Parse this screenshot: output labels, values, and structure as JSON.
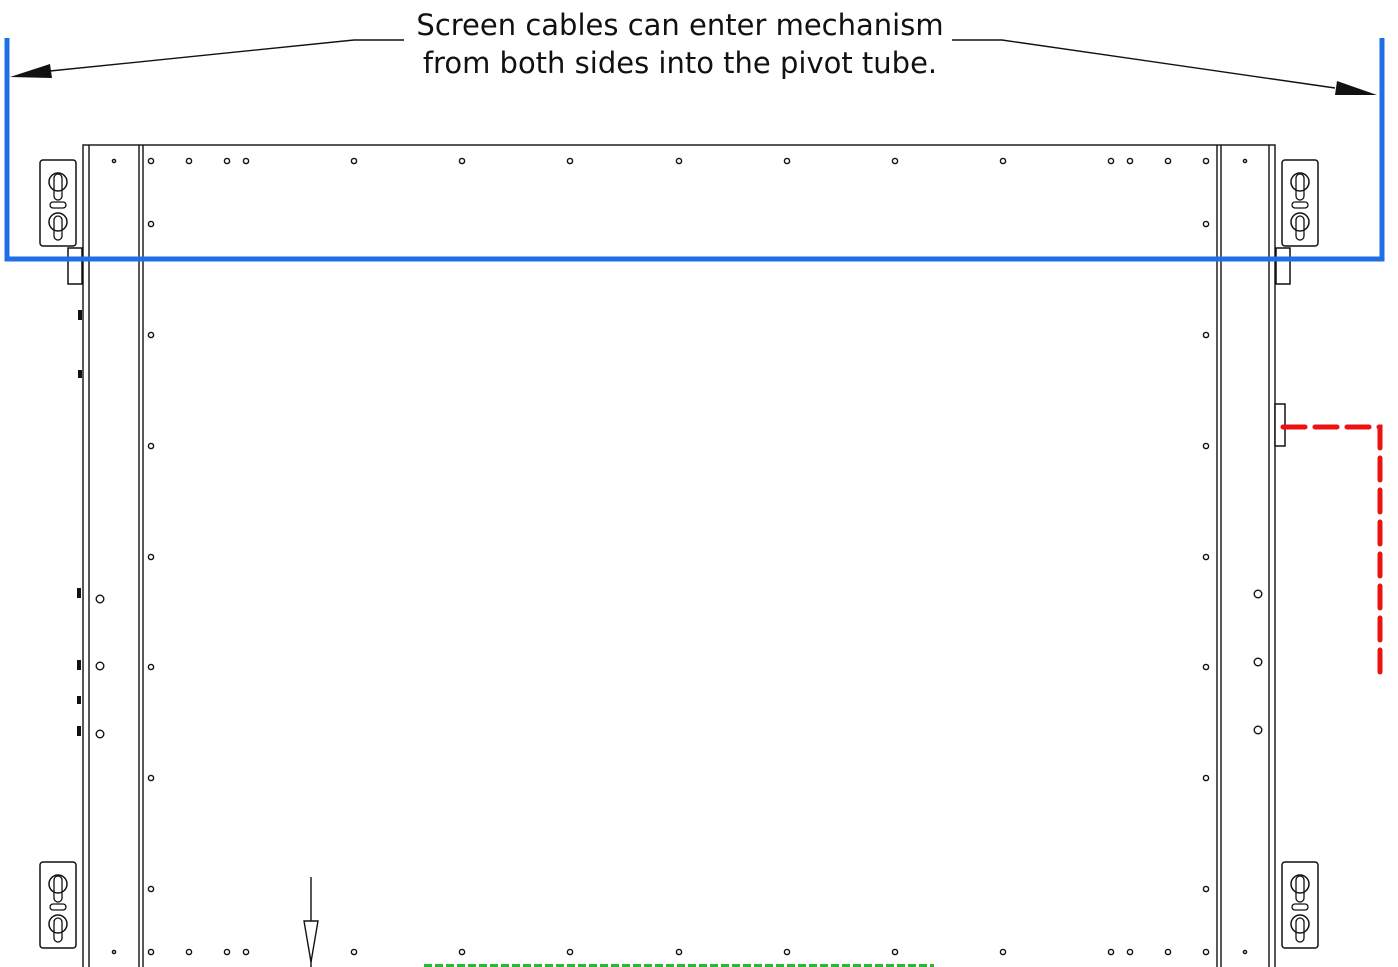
{
  "annotation": {
    "line1": "Screen cables can enter mechanism",
    "line2": "from both sides into the pivot tube."
  },
  "colors": {
    "cable_path": "#1f6fe6",
    "dashed_path": "#ee1111",
    "bottom_edge": "#22bb33",
    "line": "#111111"
  },
  "icons": {
    "mounting_bracket": "keyhole-bracket-icon",
    "fastener": "screw-dot-icon"
  }
}
